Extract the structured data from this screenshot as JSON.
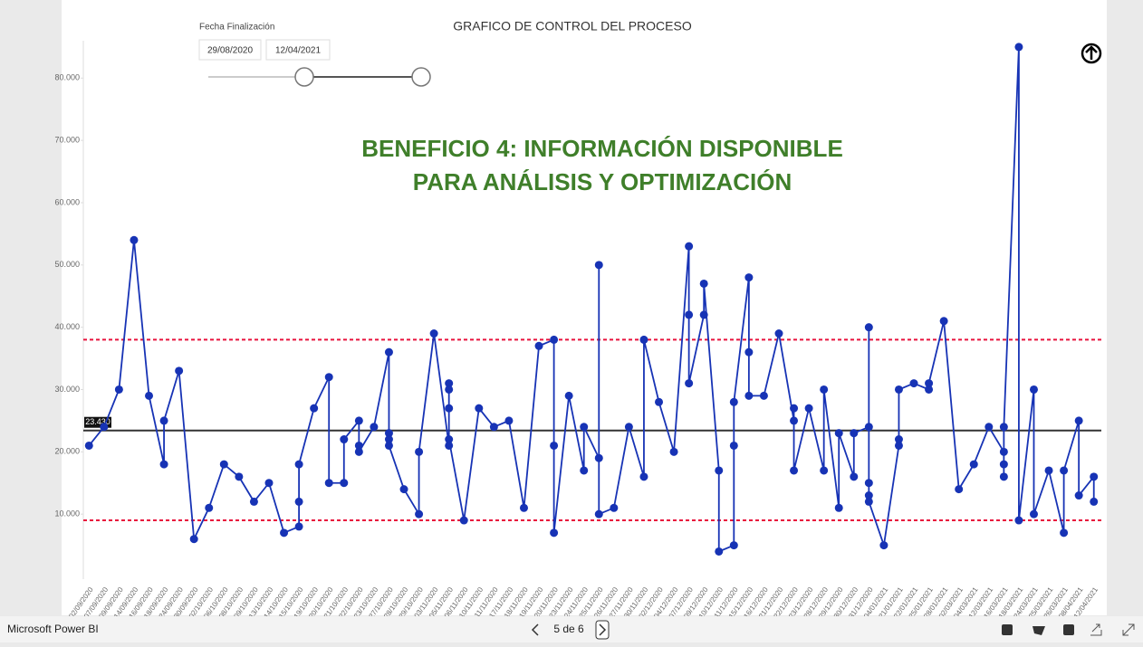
{
  "slicer": {
    "label": "Fecha Finalización",
    "start": "29/08/2020",
    "end": "12/04/2021"
  },
  "footer": {
    "brand": "Microsoft Power BI",
    "page": "5 de 6"
  },
  "chart_data": {
    "type": "line",
    "title": "GRAFICO DE CONTROL DEL PROCESO",
    "annotation": [
      "BENEFICIO 4: INFORMACIÓN DISPONIBLE",
      "PARA ANÁLISIS Y OPTIMIZACIÓN"
    ],
    "categories": [
      "02/09/2020",
      "07/09/2020",
      "09/09/2020",
      "14/09/2020",
      "16/09/2020",
      "18/09/2020",
      "24/09/2020",
      "30/09/2020",
      "02/10/2020",
      "06/10/2020",
      "08/10/2020",
      "09/10/2020",
      "13/10/2020",
      "14/10/2020",
      "15/10/2020",
      "19/10/2020",
      "20/10/2020",
      "21/10/2020",
      "22/10/2020",
      "23/10/2020",
      "27/10/2020",
      "28/10/2020",
      "29/10/2020",
      "03/11/2020",
      "05/11/2020",
      "06/11/2020",
      "10/11/2020",
      "11/11/2020",
      "17/11/2020",
      "18/11/2020",
      "19/11/2020",
      "20/11/2020",
      "23/11/2020",
      "24/11/2020",
      "25/11/2020",
      "26/11/2020",
      "27/11/2020",
      "30/11/2020",
      "02/12/2020",
      "04/12/2020",
      "07/12/2020",
      "09/12/2020",
      "10/12/2020",
      "11/12/2020",
      "15/12/2020",
      "16/12/2020",
      "21/12/2020",
      "22/12/2020",
      "23/12/2020",
      "28/12/2020",
      "29/12/2020",
      "30/12/2020",
      "31/12/2020",
      "04/01/2021",
      "21/01/2021",
      "22/01/2021",
      "25/01/2021",
      "28/01/2021",
      "02/03/2021",
      "04/03/2021",
      "12/03/2021",
      "16/03/2021",
      "18/03/2021",
      "24/03/2021",
      "25/03/2021",
      "26/03/2021",
      "08/04/2021",
      "12/04/2021"
    ],
    "series": [
      {
        "color": "#1733b5",
        "values": [
          [
            21000
          ],
          [
            24000
          ],
          [
            30000
          ],
          [
            54000
          ],
          [
            29000
          ],
          [
            18000,
            25000
          ],
          [
            33000
          ],
          [
            6000
          ],
          [
            11000
          ],
          [
            18000
          ],
          [
            16000
          ],
          [
            12000
          ],
          [
            15000
          ],
          [
            7000
          ],
          [
            8000,
            12000,
            18000
          ],
          [
            27000
          ],
          [
            32000,
            15000
          ],
          [
            15000,
            22000
          ],
          [
            25000,
            21000,
            20000
          ],
          [
            24000
          ],
          [
            36000,
            23000,
            22000,
            21000
          ],
          [
            14000
          ],
          [
            10000,
            20000
          ],
          [
            39000
          ],
          [
            21000,
            31000,
            30000,
            27000,
            22000
          ],
          [
            9000
          ],
          [
            27000
          ],
          [
            24000
          ],
          [
            25000
          ],
          [
            11000
          ],
          [
            37000
          ],
          [
            38000,
            21000,
            7000
          ],
          [
            29000
          ],
          [
            17000,
            24000
          ],
          [
            19000,
            50000,
            10000
          ],
          [
            11000
          ],
          [
            24000
          ],
          [
            16000,
            38000
          ],
          [
            28000
          ],
          [
            20000
          ],
          [
            53000,
            42000,
            31000
          ],
          [
            42000,
            47000
          ],
          [
            17000,
            4000
          ],
          [
            5000,
            21000,
            28000
          ],
          [
            48000,
            36000,
            29000
          ],
          [
            29000
          ],
          [
            39000
          ],
          [
            25000,
            27000,
            17000
          ],
          [
            27000
          ],
          [
            17000,
            30000
          ],
          [
            11000,
            23000
          ],
          [
            16000,
            23000
          ],
          [
            24000,
            40000,
            15000,
            13000,
            12000
          ],
          [
            5000
          ],
          [
            21000,
            22000,
            30000
          ],
          [
            31000
          ],
          [
            30000,
            31000
          ],
          [
            41000
          ],
          [
            14000
          ],
          [
            18000
          ],
          [
            24000
          ],
          [
            20000,
            16000,
            18000,
            24000
          ],
          [
            85000,
            9000
          ],
          [
            30000,
            10000
          ],
          [
            17000
          ],
          [
            7000,
            17000
          ],
          [
            25000,
            13000
          ],
          [
            16000,
            12000
          ]
        ]
      }
    ],
    "reference_lines": [
      {
        "value": 23430,
        "value_label": "23.430",
        "color": "#333333",
        "style": "solid"
      },
      {
        "value": 38000,
        "color": "#e8123c",
        "style": "dashed"
      },
      {
        "value": 9000,
        "color": "#e8123c",
        "style": "dashed"
      }
    ],
    "ylim": [
      0,
      86000
    ],
    "yticks": [
      {
        "value": 10000,
        "label": "10.000"
      },
      {
        "value": 20000,
        "label": "20.000"
      },
      {
        "value": 30000,
        "label": "30.000"
      },
      {
        "value": 40000,
        "label": "40.000"
      },
      {
        "value": 50000,
        "label": "50.000"
      },
      {
        "value": 60000,
        "label": "60.000"
      },
      {
        "value": 70000,
        "label": "70.000"
      },
      {
        "value": 80000,
        "label": "80.000"
      }
    ]
  }
}
